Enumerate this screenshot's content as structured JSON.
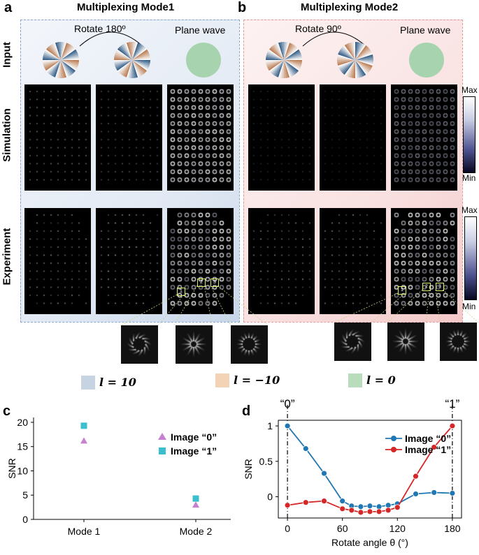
{
  "panels": {
    "a": {
      "letter": "a",
      "title": "Multiplexing Mode1",
      "rotate_label": "Rotate 180º",
      "plane_label": "Plane wave"
    },
    "b": {
      "letter": "b",
      "title": "Multiplexing Mode2",
      "rotate_label": "Rotate 90º",
      "plane_label": "Plane wave"
    },
    "c": {
      "letter": "c"
    },
    "d": {
      "letter": "d"
    }
  },
  "row_labels": {
    "input": "Input",
    "simulation": "Simulation",
    "experiment": "Experiment"
  },
  "colorbars": {
    "sim": {
      "max": "Max",
      "min": "Min"
    },
    "exp": {
      "max": "Max",
      "min": "Min"
    }
  },
  "zoom_labels": [
    "1",
    "2",
    "3"
  ],
  "legend": [
    {
      "label": "l = 10",
      "color": "#c7d3e0"
    },
    {
      "label": "l = −10",
      "color": "#f2d3b6"
    },
    {
      "label": "l = 0",
      "color": "#b9dcbc"
    }
  ],
  "colors": {
    "blue": "#1f77b4",
    "red": "#d62728",
    "purple": "#c77fcf",
    "cyan": "#3bbfcf",
    "plane": "#a7d3ae"
  },
  "chart_data": [
    {
      "type": "scatter",
      "ylabel": "SNR",
      "categories": [
        "Mode 1",
        "Mode 2"
      ],
      "yticks": [
        "0",
        "5",
        "10",
        "15",
        "20"
      ],
      "ylim": [
        0,
        21
      ],
      "legend_position": "top-right",
      "series": [
        {
          "name": "Image “0”",
          "marker": "triangle",
          "color": "#c77fcf",
          "values": [
            16.2,
            3.0
          ]
        },
        {
          "name": "Image “1”",
          "marker": "square",
          "color": "#3bbfcf",
          "values": [
            19.3,
            4.3
          ]
        }
      ]
    },
    {
      "type": "line",
      "xlabel": "Rotate angle θ (°)",
      "ylabel": "SNR",
      "xticks": [
        "0",
        "60",
        "120",
        "180"
      ],
      "yticks": [
        "0",
        "0.5",
        "1"
      ],
      "xlim": [
        -10,
        190
      ],
      "ylim": [
        -0.3,
        1.08
      ],
      "annotations": [
        "“0”",
        "“1”"
      ],
      "legend_position": "top-right",
      "x": [
        0,
        20,
        40,
        60,
        70,
        80,
        90,
        100,
        110,
        120,
        140,
        160,
        180
      ],
      "series": [
        {
          "name": "Image “0”",
          "color": "#1f77b4",
          "values": [
            1.0,
            0.68,
            0.33,
            -0.06,
            -0.13,
            -0.14,
            -0.13,
            -0.14,
            -0.12,
            -0.1,
            0.04,
            0.06,
            0.05
          ]
        },
        {
          "name": "Image “1”",
          "color": "#d62728",
          "values": [
            -0.12,
            -0.08,
            -0.06,
            -0.17,
            -0.19,
            -0.22,
            -0.21,
            -0.21,
            -0.19,
            -0.15,
            0.29,
            0.7,
            1.0
          ]
        }
      ]
    }
  ]
}
